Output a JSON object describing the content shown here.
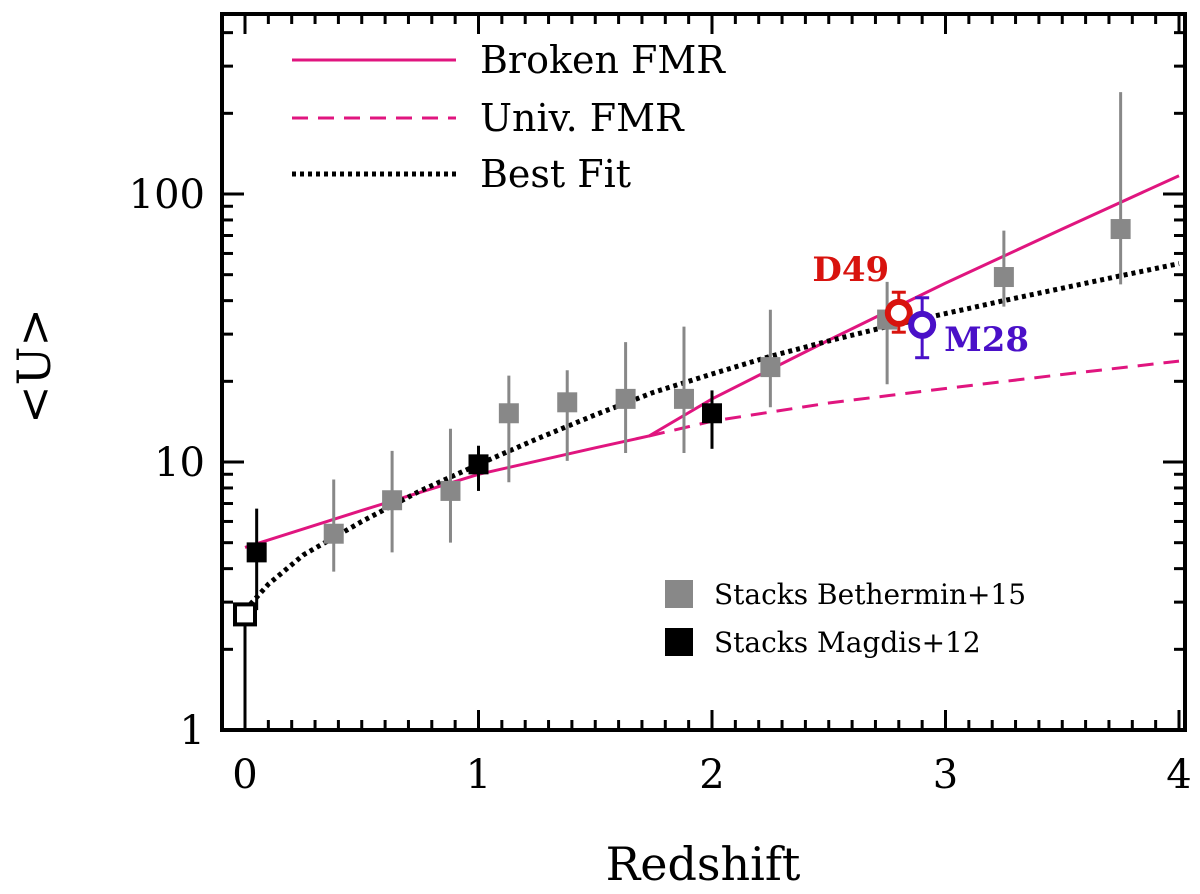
{
  "chart_data": {
    "type": "scatter",
    "xlabel": "Redshift",
    "ylabel": "<U>",
    "xlim": [
      -0.1,
      4.0
    ],
    "ylim": [
      1,
      500
    ],
    "yscale": "log",
    "x_ticks": [
      0,
      1,
      2,
      3,
      4
    ],
    "x_tick_labels": [
      "0",
      "1",
      "2",
      "3",
      "4"
    ],
    "y_ticks": [
      1,
      10,
      100
    ],
    "y_tick_labels": [
      "1",
      "10",
      "100"
    ],
    "legend_lines": [
      {
        "name": "Broken FMR",
        "style": "solid",
        "color": "#e0157f"
      },
      {
        "name": "Univ. FMR",
        "style": "dashed",
        "color": "#e0157f"
      },
      {
        "name": "Best Fit",
        "style": "dotted",
        "color": "#000000"
      }
    ],
    "legend_markers": [
      {
        "name": "Stacks Bethermin+15",
        "color": "#888888"
      },
      {
        "name": "Stacks Magdis+12",
        "color": "#000000"
      }
    ],
    "lines": [
      {
        "name": "Broken FMR",
        "style": "solid",
        "color": "#e0157f",
        "x": [
          0.0,
          0.5,
          1.0,
          1.5,
          1.73,
          2.0,
          2.5,
          3.0,
          3.5,
          4.0
        ],
        "y": [
          4.8,
          6.6,
          9.0,
          11.3,
          12.5,
          17.2,
          28.5,
          46.5,
          74.0,
          117.0
        ]
      },
      {
        "name": "Univ. FMR",
        "style": "dashed",
        "color": "#e0157f",
        "x": [
          1.73,
          2.0,
          2.5,
          3.0,
          3.5,
          4.0
        ],
        "y": [
          12.5,
          14.2,
          16.6,
          18.8,
          21.2,
          23.8
        ]
      },
      {
        "name": "Best Fit",
        "style": "dotted",
        "color": "#000000",
        "x": [
          0.0,
          0.1,
          0.25,
          0.5,
          0.75,
          1.0,
          1.25,
          1.5,
          1.75,
          2.0,
          2.25,
          2.5,
          2.75,
          3.0,
          3.25,
          3.5,
          3.75,
          4.0
        ],
        "y": [
          2.8,
          3.5,
          4.5,
          6.0,
          7.8,
          9.8,
          12.2,
          15.0,
          18.2,
          21.3,
          24.8,
          28.3,
          32.0,
          35.8,
          40.0,
          44.5,
          49.5,
          55.0
        ]
      }
    ],
    "series": [
      {
        "name": "Stacks Bethermin+15",
        "color": "#888888",
        "marker": "square",
        "points": [
          {
            "x": 0.38,
            "y": 5.4,
            "ylo": 3.9,
            "yhi": 8.6
          },
          {
            "x": 0.63,
            "y": 7.2,
            "ylo": 4.6,
            "yhi": 11.0
          },
          {
            "x": 0.88,
            "y": 7.8,
            "ylo": 5.0,
            "yhi": 13.3
          },
          {
            "x": 1.13,
            "y": 15.2,
            "ylo": 8.4,
            "yhi": 21.0
          },
          {
            "x": 1.38,
            "y": 16.7,
            "ylo": 10.1,
            "yhi": 22.0
          },
          {
            "x": 1.63,
            "y": 17.2,
            "ylo": 10.8,
            "yhi": 28.0
          },
          {
            "x": 1.88,
            "y": 17.2,
            "ylo": 10.8,
            "yhi": 32.0
          },
          {
            "x": 2.25,
            "y": 22.6,
            "ylo": 16.0,
            "yhi": 37.0
          },
          {
            "x": 2.75,
            "y": 34.0,
            "ylo": 19.5,
            "yhi": 47.0
          },
          {
            "x": 3.25,
            "y": 49.0,
            "ylo": 38.0,
            "yhi": 73.0
          },
          {
            "x": 3.75,
            "y": 74.0,
            "ylo": 46.0,
            "yhi": 240.0
          }
        ]
      },
      {
        "name": "Stacks Magdis+12",
        "color": "#000000",
        "marker": "square",
        "points": [
          {
            "x": 0.05,
            "y": 4.6,
            "ylo": 2.8,
            "yhi": 6.7
          },
          {
            "x": 1.0,
            "y": 9.8,
            "ylo": 7.8,
            "yhi": 11.5
          },
          {
            "x": 2.0,
            "y": 15.2,
            "ylo": 11.2,
            "yhi": 18.5
          }
        ]
      },
      {
        "name": "Stacks Magdis+12 (open)",
        "color": "#000000",
        "marker": "open-square",
        "points": [
          {
            "x": 0.0,
            "y": 2.7,
            "ylo": 1.0,
            "yhi": 2.7
          }
        ]
      }
    ],
    "annotations": [
      {
        "label": "D49",
        "x": 2.8,
        "y": 36.0,
        "ylo": 30.5,
        "yhi": 43.0,
        "color": "#d8130e"
      },
      {
        "label": "M28",
        "x": 2.9,
        "y": 32.5,
        "ylo": 24.5,
        "yhi": 41.0,
        "color": "#4a10c8"
      }
    ]
  }
}
